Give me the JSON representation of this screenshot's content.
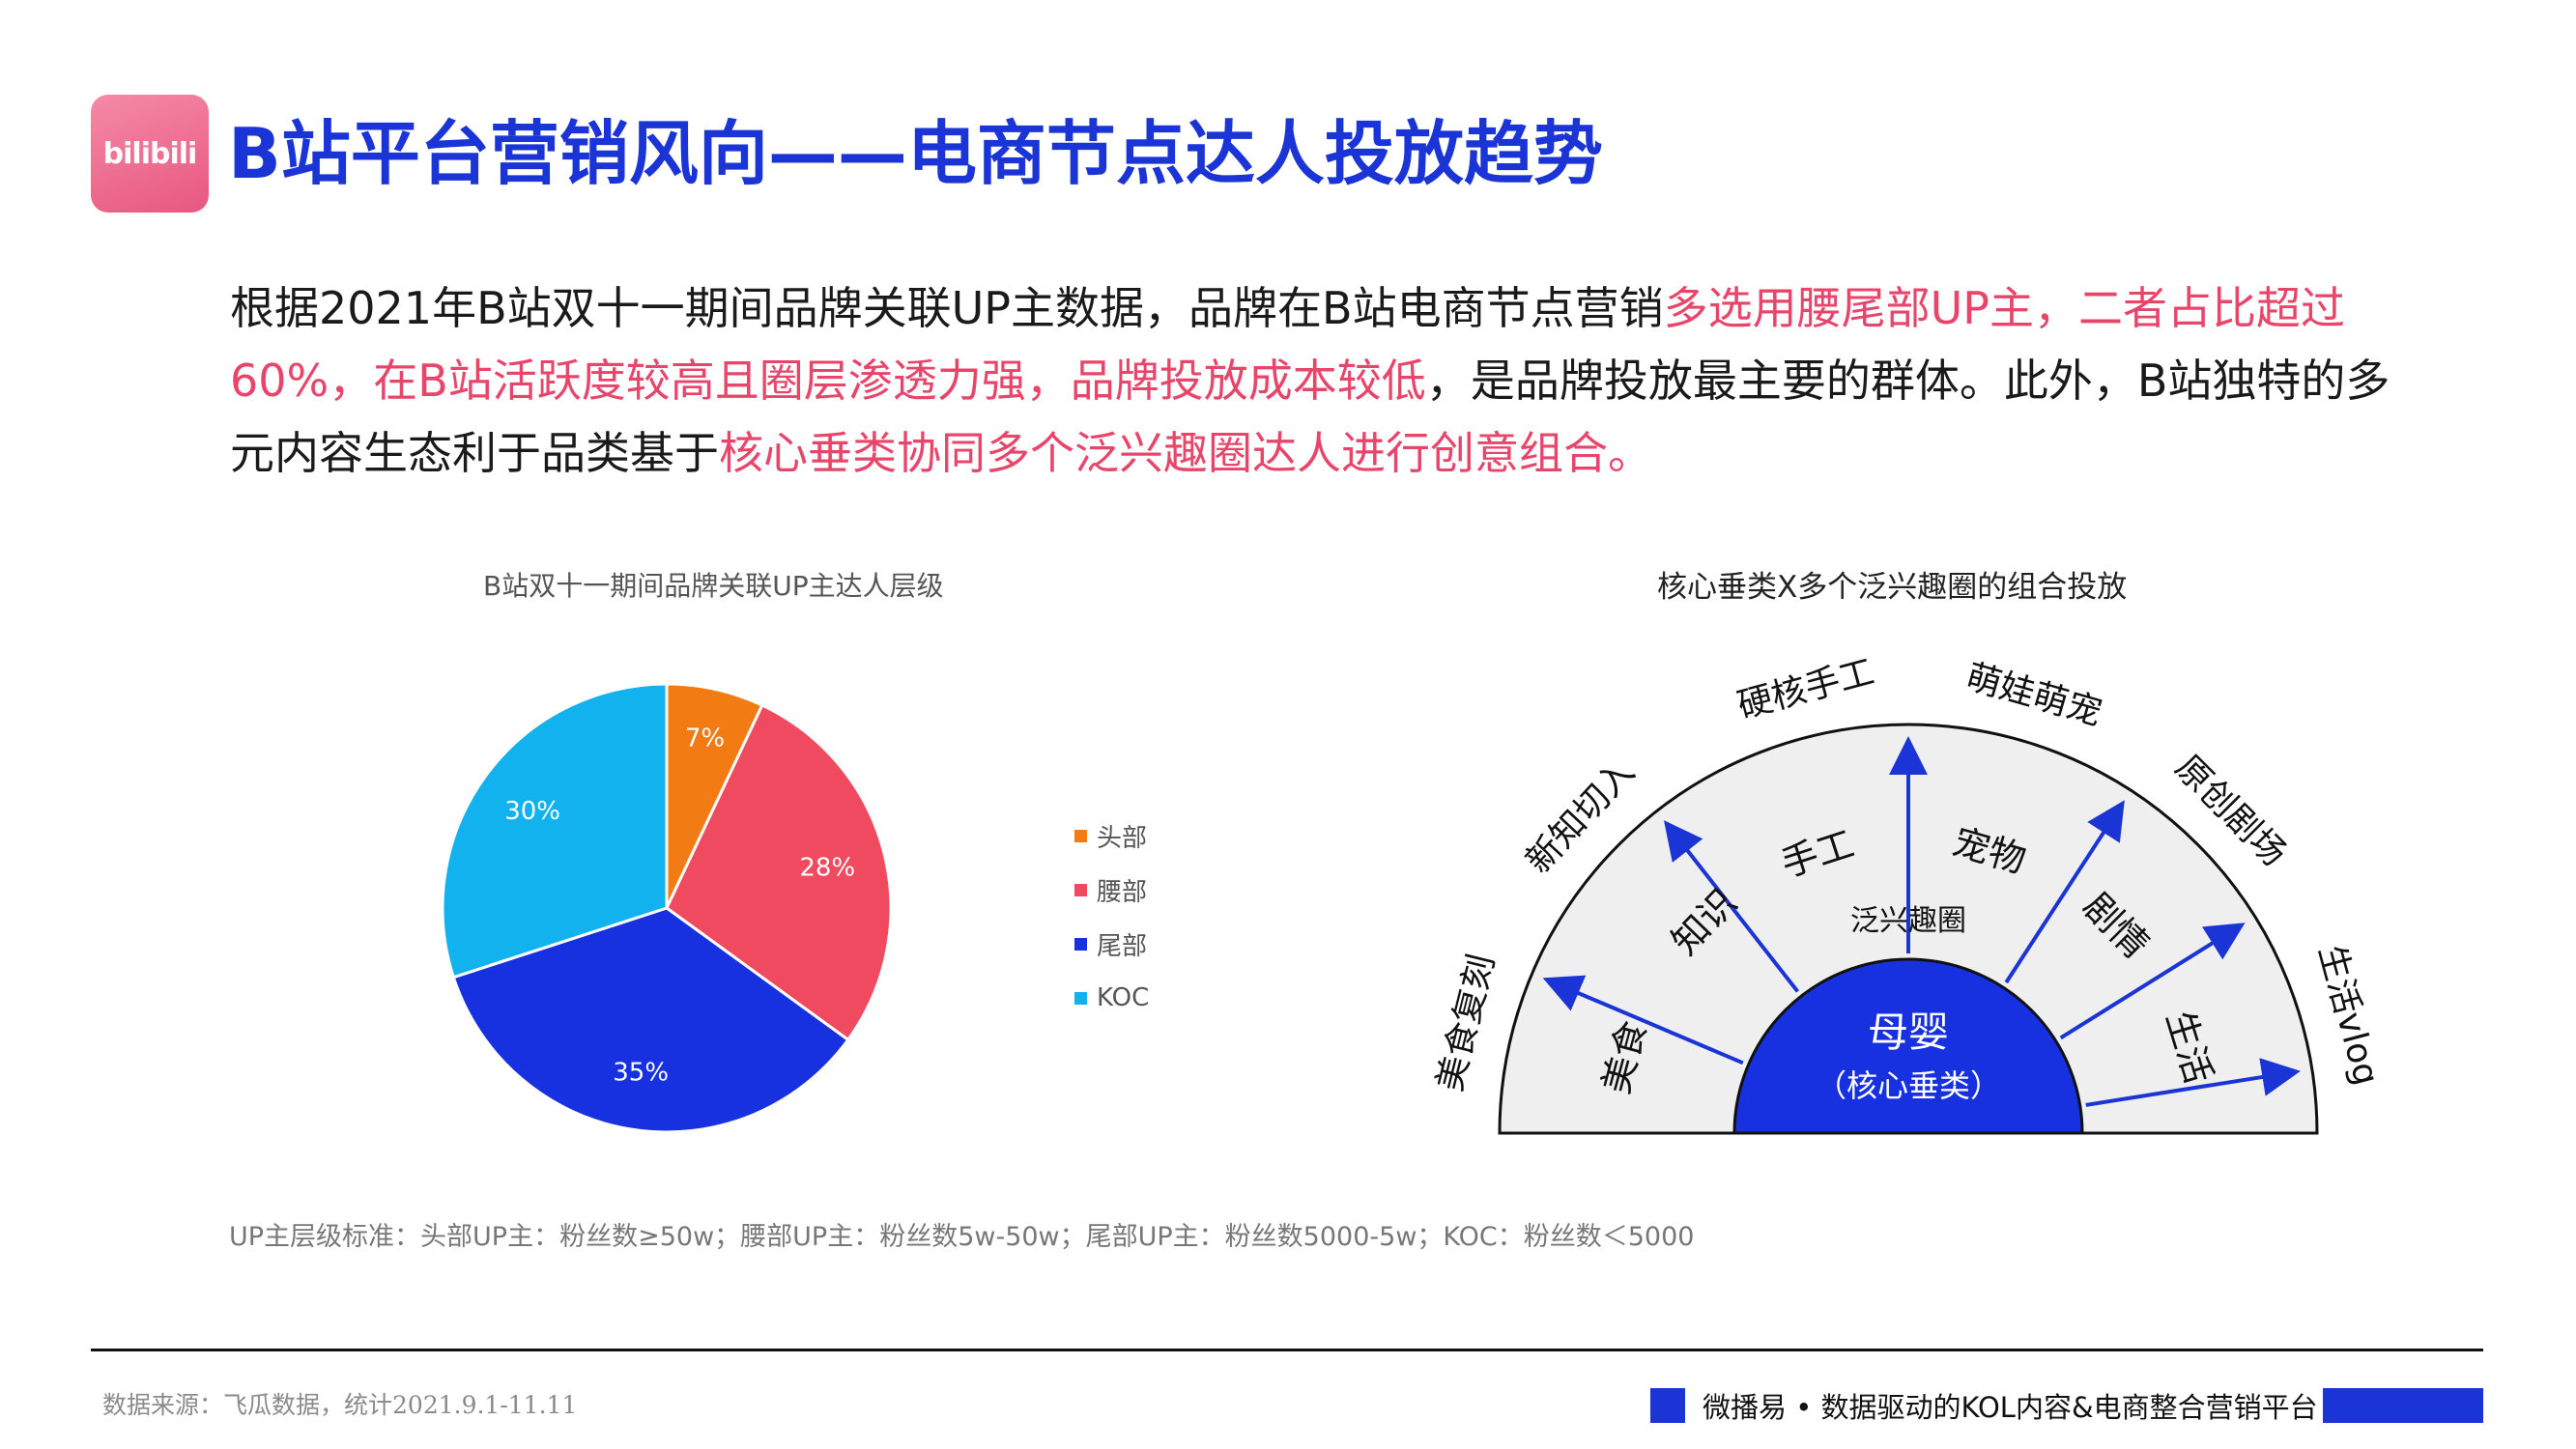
{
  "logo_text": "bilibili",
  "title": "B站平台营销风向——电商节点达人投放趋势",
  "paragraph": {
    "part1": "根据2021年B站双十一期间品牌关联UP主数据，品牌在B站电商节点营销",
    "highlight1": "多选用腰尾部UP主，二者占比超过60%，在B站活跃度较高且圈层渗透力强，品牌投放成本较低",
    "part2": "，是品牌投放最主要的群体。此外，B站独特的多元内容生态利于品类基于",
    "highlight2": "核心垂类协同多个泛兴趣圈达人进行创意组合。"
  },
  "chart_data": {
    "type": "pie",
    "title": "B站双十一期间品牌关联UP主达人层级",
    "slices": [
      {
        "name": "头部",
        "value": 7,
        "label": "7%",
        "color": "#f27b13"
      },
      {
        "name": "腰部",
        "value": 28,
        "label": "28%",
        "color": "#ef4a5f"
      },
      {
        "name": "尾部",
        "value": 35,
        "label": "35%",
        "color": "#1730e0"
      },
      {
        "name": "KOC",
        "value": 30,
        "label": "30%",
        "color": "#12b2ee"
      }
    ],
    "legend_position": "right"
  },
  "fan_diagram": {
    "title": "核心垂类X多个泛兴趣圈的组合投放",
    "outer_labels": [
      "美食复刻",
      "新知切入",
      "硬核手工",
      "萌娃萌宠",
      "原创剧场",
      "生活vlog"
    ],
    "inner_labels": [
      "美食",
      "知识",
      "手工",
      "宠物",
      "剧情",
      "生活"
    ],
    "middle_label": "泛兴趣圈",
    "core_label": "母婴",
    "core_sublabel": "（核心垂类）",
    "colors": {
      "fan_fill": "#efefef",
      "core": "#1730e0",
      "arrow": "#1b34d6"
    }
  },
  "footnote": "UP主层级标准：头部UP主：粉丝数≥50w；腰部UP主：粉丝数5w-50w；尾部UP主：粉丝数5000-5w；KOC：粉丝数＜5000",
  "source": "数据来源：飞瓜数据，统计2021.9.1-11.11",
  "brand_tagline": "微播易 • 数据驱动的KOL内容&电商整合营销平台"
}
